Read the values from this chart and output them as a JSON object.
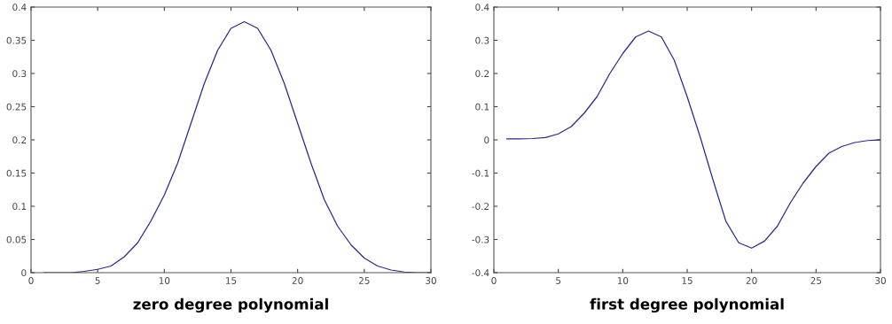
{
  "chart_data": [
    {
      "type": "line",
      "xlabel": "zero degree polynomial",
      "x": [
        1,
        2,
        3,
        4,
        5,
        6,
        7,
        8,
        9,
        10,
        11,
        12,
        13,
        14,
        15,
        16,
        17,
        18,
        19,
        20,
        21,
        22,
        23,
        24,
        25,
        26,
        27,
        28,
        29,
        30
      ],
      "series": [
        {
          "color": "#2a2a8c",
          "values": [
            0,
            0,
            0,
            0.002,
            0.005,
            0.01,
            0.024,
            0.045,
            0.078,
            0.117,
            0.165,
            0.225,
            0.285,
            0.335,
            0.368,
            0.378,
            0.368,
            0.335,
            0.285,
            0.225,
            0.165,
            0.11,
            0.07,
            0.042,
            0.022,
            0.01,
            0.004,
            0.001,
            0,
            0
          ]
        }
      ],
      "xlim": [
        0,
        30
      ],
      "xticks": [
        0,
        5,
        10,
        15,
        20,
        25,
        30
      ],
      "ylim": [
        0,
        0.4
      ],
      "yticks": [
        0,
        0.05,
        0.1,
        0.15,
        0.2,
        0.25,
        0.3,
        0.35,
        0.4
      ],
      "grid": false,
      "legend": false
    },
    {
      "type": "line",
      "xlabel": "first degree polynomial",
      "x": [
        1,
        2,
        3,
        4,
        5,
        6,
        7,
        8,
        9,
        10,
        11,
        12,
        13,
        14,
        15,
        16,
        17,
        18,
        19,
        20,
        21,
        22,
        23,
        24,
        25,
        26,
        27,
        28,
        29,
        30
      ],
      "series": [
        {
          "color": "#2a2a8c",
          "values": [
            0.003,
            0.003,
            0.004,
            0.007,
            0.018,
            0.04,
            0.08,
            0.13,
            0.2,
            0.26,
            0.31,
            0.328,
            0.31,
            0.24,
            0.13,
            0.01,
            -0.12,
            -0.245,
            -0.31,
            -0.326,
            -0.305,
            -0.26,
            -0.19,
            -0.13,
            -0.08,
            -0.04,
            -0.02,
            -0.008,
            -0.002,
            0
          ]
        }
      ],
      "xlim": [
        0,
        30
      ],
      "xticks": [
        0,
        5,
        10,
        15,
        20,
        25,
        30
      ],
      "ylim": [
        -0.4,
        0.4
      ],
      "yticks": [
        -0.4,
        -0.3,
        -0.2,
        -0.1,
        0,
        0.1,
        0.2,
        0.3,
        0.4
      ],
      "grid": false,
      "legend": false
    }
  ]
}
